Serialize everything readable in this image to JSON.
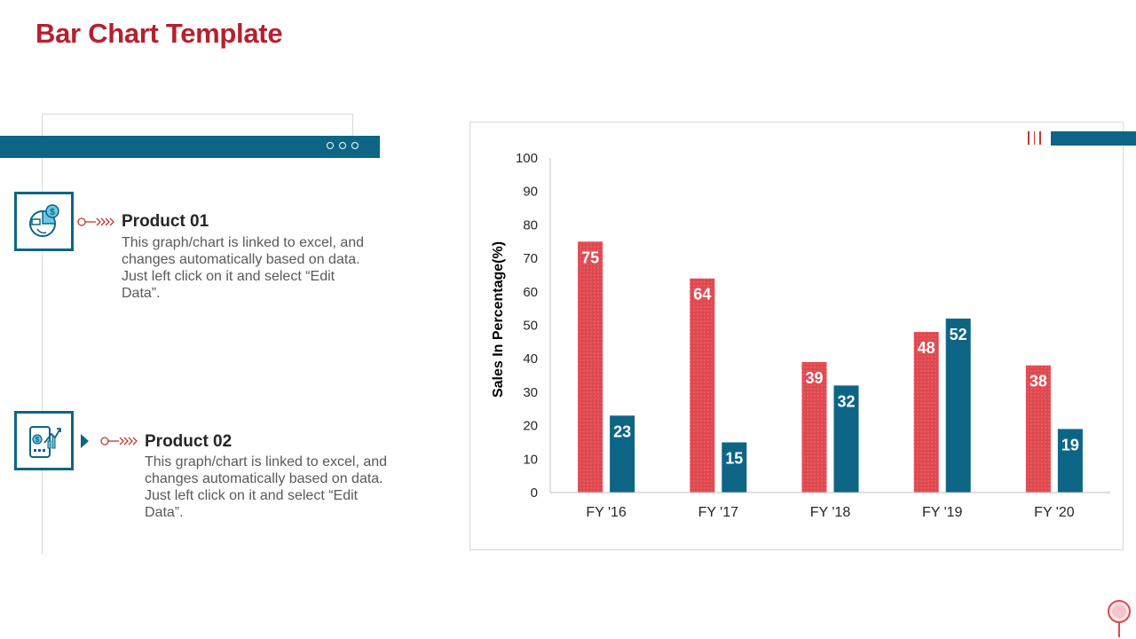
{
  "page": {
    "title": "Bar Chart Template"
  },
  "products": [
    {
      "title": "Product 01",
      "description": "This graph/chart is linked to excel, and changes automatically based on data. Just left click on it and select “Edit Data”.",
      "icon": "finance-pie-chart-icon"
    },
    {
      "title": "Product 02",
      "description": "This graph/chart is linked to excel, and changes automatically based on data. Just left click on it and select “Edit Data”.",
      "icon": "mobile-growth-chart-icon"
    }
  ],
  "colors": {
    "accent_red": "#b5202f",
    "bar_red": "#e0484f",
    "bar_teal": "#0d6585"
  },
  "chart_data": {
    "type": "bar",
    "categories": [
      "FY '16",
      "FY '17",
      "FY '18",
      "FY '19",
      "FY '20"
    ],
    "series": [
      {
        "name": "Product 01",
        "values": [
          75,
          64,
          39,
          48,
          38
        ],
        "color": "#e0484f"
      },
      {
        "name": "Product 02",
        "values": [
          23,
          15,
          32,
          52,
          19
        ],
        "color": "#0d6585"
      }
    ],
    "title": "",
    "xlabel": "",
    "ylabel": "Sales In Percentage(%)",
    "ylim": [
      0,
      100
    ],
    "yticks": [
      0,
      10,
      20,
      30,
      40,
      50,
      60,
      70,
      80,
      90,
      100
    ],
    "grid": false,
    "data_labels": true
  }
}
